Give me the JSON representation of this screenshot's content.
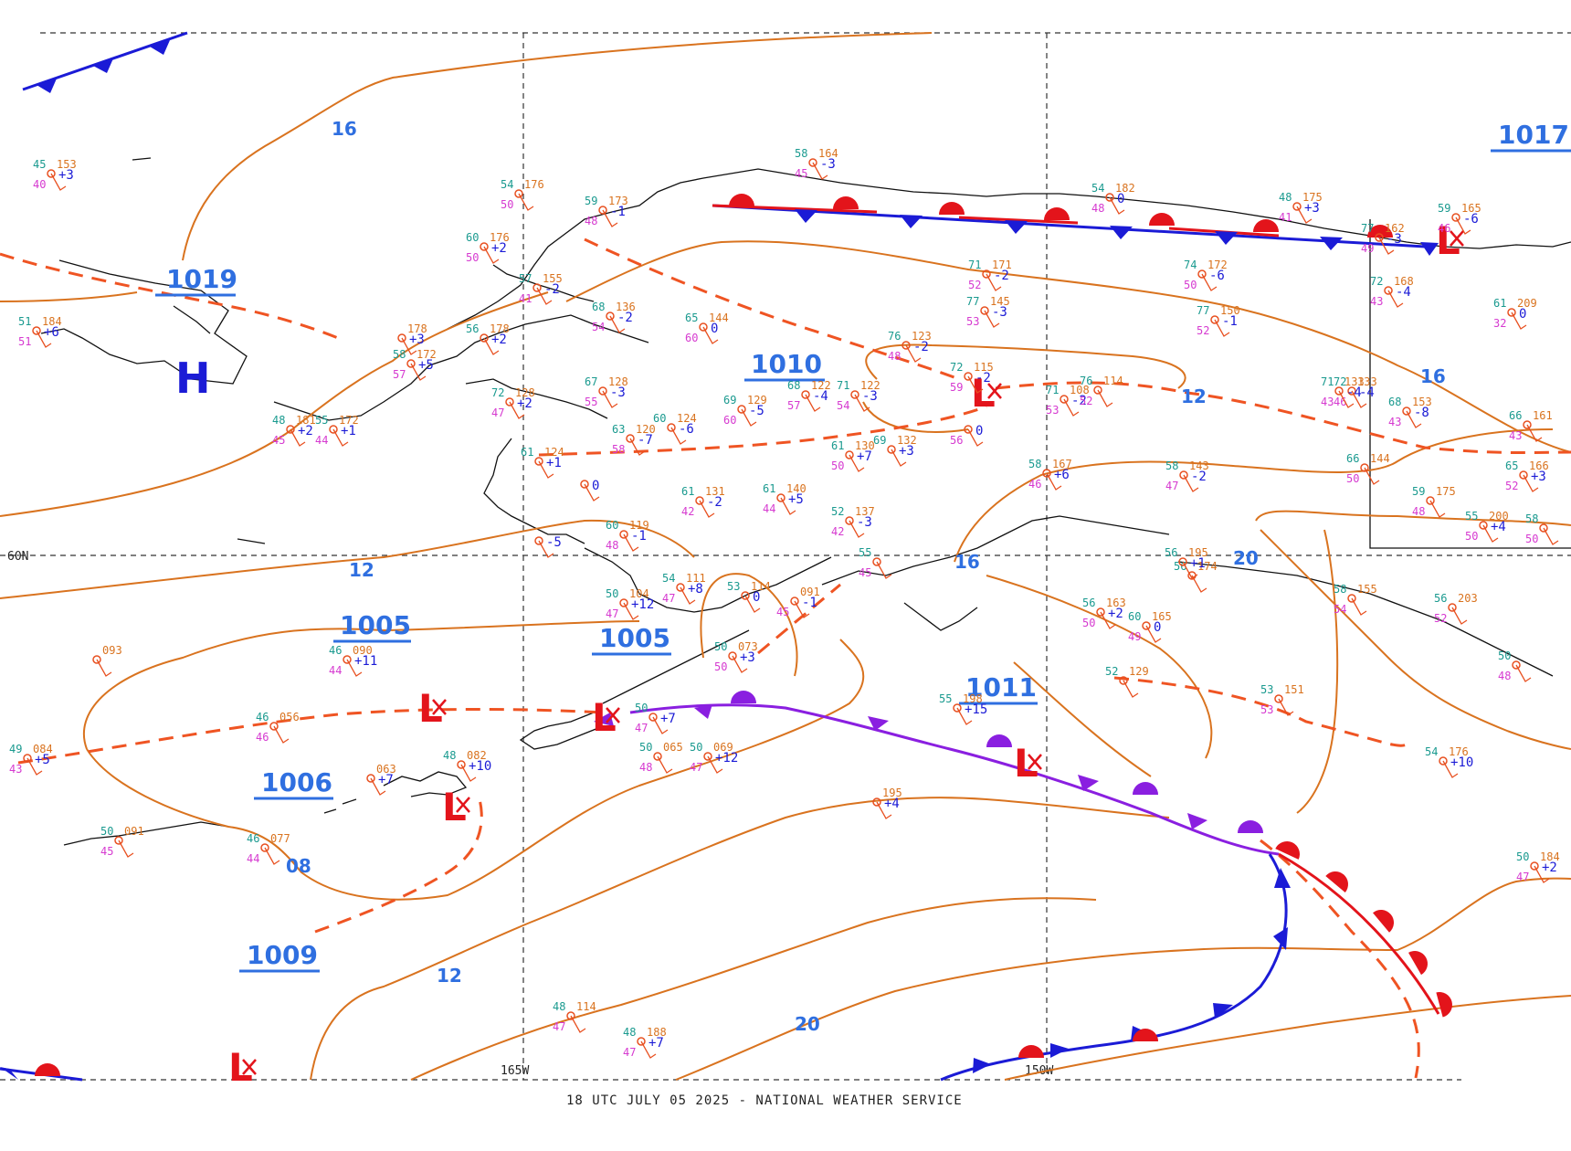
{
  "footer": "18 UTC JULY 05 2025 - NATIONAL WEATHER SERVICE",
  "grid_labels": {
    "lat60": "60N",
    "lon165": "165W",
    "lon150": "150W"
  },
  "colors": {
    "isobar": "#d9731f",
    "trough": "#ef5423",
    "warm_front": "#e3141b",
    "cold_front": "#1b1bd6",
    "occluded_front": "#8a1fe0",
    "pressure_label": "#2f6fe0"
  },
  "isobar_labels": [
    "16",
    "12",
    "08",
    "12",
    "20",
    "16",
    "20",
    "12",
    "16"
  ],
  "pressure_centers": [
    {
      "type": "H",
      "value": "1019"
    },
    {
      "type": "L",
      "value": "1010"
    },
    {
      "type": "L",
      "value": "1005"
    },
    {
      "type": "L",
      "value": "1005"
    },
    {
      "type": "L",
      "value": "1006"
    },
    {
      "type": "L",
      "value": "1009"
    },
    {
      "type": "L",
      "value": "1011"
    },
    {
      "type": "L",
      "value": "1017"
    }
  ],
  "symbols": {
    "high": "H",
    "low": "L"
  },
  "stations": [
    {
      "t": "45",
      "p": "153",
      "td": "40",
      "tend": "+3"
    },
    {
      "t": "51",
      "p": "184",
      "td": "51",
      "tend": "+6"
    },
    {
      "t": "54",
      "p": "176",
      "td": "50",
      "tend": ""
    },
    {
      "t": "59",
      "p": "173",
      "td": "48",
      "tend": "-1"
    },
    {
      "t": "60",
      "p": "176",
      "td": "50",
      "tend": "+2"
    },
    {
      "t": "57",
      "p": "155",
      "td": "41",
      "tend": "-2"
    },
    {
      "t": "",
      "p": "178",
      "td": "",
      "tend": "+3"
    },
    {
      "t": "58",
      "p": "172",
      "td": "57",
      "tend": "+5"
    },
    {
      "t": "56",
      "p": "178",
      "td": "",
      "tend": "+2"
    },
    {
      "t": "68",
      "p": "136",
      "td": "54",
      "tend": "-2"
    },
    {
      "t": "65",
      "p": "144",
      "td": "60",
      "tend": "0"
    },
    {
      "t": "48",
      "p": "181",
      "td": "45",
      "tend": "+2"
    },
    {
      "t": "55",
      "p": "172",
      "td": "44",
      "tend": "+1"
    },
    {
      "t": "72",
      "p": "128",
      "td": "47",
      "tend": "+2"
    },
    {
      "t": "67",
      "p": "128",
      "td": "55",
      "tend": "-3"
    },
    {
      "t": "60",
      "p": "124",
      "td": "",
      "tend": "-6"
    },
    {
      "t": "63",
      "p": "120",
      "td": "58",
      "tend": "-7"
    },
    {
      "t": "69",
      "p": "129",
      "td": "60",
      "tend": "-5"
    },
    {
      "t": "61",
      "p": "124",
      "td": "",
      "tend": "+1"
    },
    {
      "t": "",
      "p": "",
      "td": "",
      "tend": "0"
    },
    {
      "t": "58",
      "p": "164",
      "td": "45",
      "tend": "-3"
    },
    {
      "t": "54",
      "p": "182",
      "td": "48",
      "tend": "0"
    },
    {
      "t": "48",
      "p": "175",
      "td": "41",
      "tend": "+3"
    },
    {
      "t": "71",
      "p": "171",
      "td": "52",
      "tend": "-2"
    },
    {
      "t": "77",
      "p": "145",
      "td": "53",
      "tend": "-3"
    },
    {
      "t": "76",
      "p": "123",
      "td": "48",
      "tend": "-2"
    },
    {
      "t": "71",
      "p": "122",
      "td": "54",
      "tend": "-3"
    },
    {
      "t": "68",
      "p": "122",
      "td": "57",
      "tend": "-4"
    },
    {
      "t": "72",
      "p": "115",
      "td": "59",
      "tend": "-2"
    },
    {
      "t": "",
      "p": "",
      "td": "56",
      "tend": "0"
    },
    {
      "t": "74",
      "p": "172",
      "td": "50",
      "tend": "-6"
    },
    {
      "t": "77",
      "p": "150",
      "td": "52",
      "tend": "-1"
    },
    {
      "t": "71",
      "p": "108",
      "td": "53",
      "tend": "-2"
    },
    {
      "t": "76",
      "p": "114",
      "td": "52",
      "tend": ""
    },
    {
      "t": "72",
      "p": "133",
      "td": "46",
      "tend": "-4"
    },
    {
      "t": "77",
      "p": "162",
      "td": "49",
      "tend": "-3"
    },
    {
      "t": "59",
      "p": "165",
      "td": "46",
      "tend": "-6"
    },
    {
      "t": "72",
      "p": "168",
      "td": "43",
      "tend": "-4"
    },
    {
      "t": "61",
      "p": "209",
      "td": "32",
      "tend": "0"
    },
    {
      "t": "71",
      "p": "133",
      "td": "43",
      "tend": "-4"
    },
    {
      "t": "68",
      "p": "153",
      "td": "43",
      "tend": "-8"
    },
    {
      "t": "66",
      "p": "161",
      "td": "43",
      "tend": ""
    },
    {
      "t": "66",
      "p": "144",
      "td": "50",
      "tend": ""
    },
    {
      "t": "65",
      "p": "166",
      "td": "52",
      "tend": "+3"
    },
    {
      "t": "61",
      "p": "130",
      "td": "50",
      "tend": "+7"
    },
    {
      "t": "69",
      "p": "132",
      "td": "",
      "tend": "+3"
    },
    {
      "t": "61",
      "p": "131",
      "td": "42",
      "tend": "-2"
    },
    {
      "t": "61",
      "p": "140",
      "td": "44",
      "tend": "+5"
    },
    {
      "t": "52",
      "p": "137",
      "td": "42",
      "tend": "-3"
    },
    {
      "t": "58",
      "p": "167",
      "td": "46",
      "tend": "+6"
    },
    {
      "t": "58",
      "p": "143",
      "td": "47",
      "tend": "-2"
    },
    {
      "t": "59",
      "p": "175",
      "td": "48",
      "tend": ""
    },
    {
      "t": "55",
      "p": "200",
      "td": "50",
      "tend": "+4"
    },
    {
      "t": "58",
      "p": "",
      "td": "50",
      "tend": ""
    },
    {
      "t": "50",
      "p": "104",
      "td": "47",
      "tend": "+12"
    },
    {
      "t": "54",
      "p": "111",
      "td": "47",
      "tend": "+8"
    },
    {
      "t": "53",
      "p": "114",
      "td": "",
      "tend": "0"
    },
    {
      "t": "",
      "p": "091",
      "td": "45",
      "tend": "-1"
    },
    {
      "t": "",
      "p": "",
      "td": "",
      "tend": "-5"
    },
    {
      "t": "60",
      "p": "119",
      "td": "48",
      "tend": "-1"
    },
    {
      "t": "50",
      "p": "073",
      "td": "50",
      "tend": "+3"
    },
    {
      "t": "",
      "p": "093",
      "td": "",
      "tend": ""
    },
    {
      "t": "46",
      "p": "090",
      "td": "44",
      "tend": "+11"
    },
    {
      "t": "46",
      "p": "056",
      "td": "46",
      "tend": ""
    },
    {
      "t": "49",
      "p": "084",
      "td": "43",
      "tend": "+5"
    },
    {
      "t": "",
      "p": "063",
      "td": "",
      "tend": "+7"
    },
    {
      "t": "48",
      "p": "082",
      "td": "",
      "tend": "+10"
    },
    {
      "t": "50",
      "p": "091",
      "td": "45",
      "tend": ""
    },
    {
      "t": "46",
      "p": "077",
      "td": "44",
      "tend": ""
    },
    {
      "t": "50",
      "p": "065",
      "td": "48",
      "tend": ""
    },
    {
      "t": "50",
      "p": "069",
      "td": "47",
      "tend": "+12"
    },
    {
      "t": "50",
      "p": "",
      "td": "47",
      "tend": "+7"
    },
    {
      "t": "55",
      "p": "",
      "td": "45",
      "tend": ""
    },
    {
      "t": "56",
      "p": "163",
      "td": "50",
      "tend": "+2"
    },
    {
      "t": "60",
      "p": "165",
      "td": "49",
      "tend": "0"
    },
    {
      "t": "52",
      "p": "129",
      "td": "",
      "tend": ""
    },
    {
      "t": "53",
      "p": "151",
      "td": "53",
      "tend": ""
    },
    {
      "t": "54",
      "p": "176",
      "td": "",
      "tend": "+10"
    },
    {
      "t": "56",
      "p": "203",
      "td": "52",
      "tend": ""
    },
    {
      "t": "58",
      "p": "155",
      "td": "54",
      "tend": ""
    },
    {
      "t": "56",
      "p": "174",
      "td": "",
      "tend": ""
    },
    {
      "t": "56",
      "p": "195",
      "td": "",
      "tend": "+1"
    },
    {
      "t": "",
      "p": "195",
      "td": "",
      "tend": "+4"
    },
    {
      "t": "48",
      "p": "114",
      "td": "47",
      "tend": ""
    },
    {
      "t": "48",
      "p": "188",
      "td": "47",
      "tend": "+7"
    },
    {
      "t": "50",
      "p": "184",
      "td": "47",
      "tend": "+2"
    },
    {
      "t": "55",
      "p": "198",
      "td": "",
      "tend": "+15"
    },
    {
      "t": "50",
      "p": "",
      "td": "48",
      "tend": ""
    },
    {
      "t": "57",
      "p": "",
      "td": "53",
      "tend": ""
    }
  ]
}
